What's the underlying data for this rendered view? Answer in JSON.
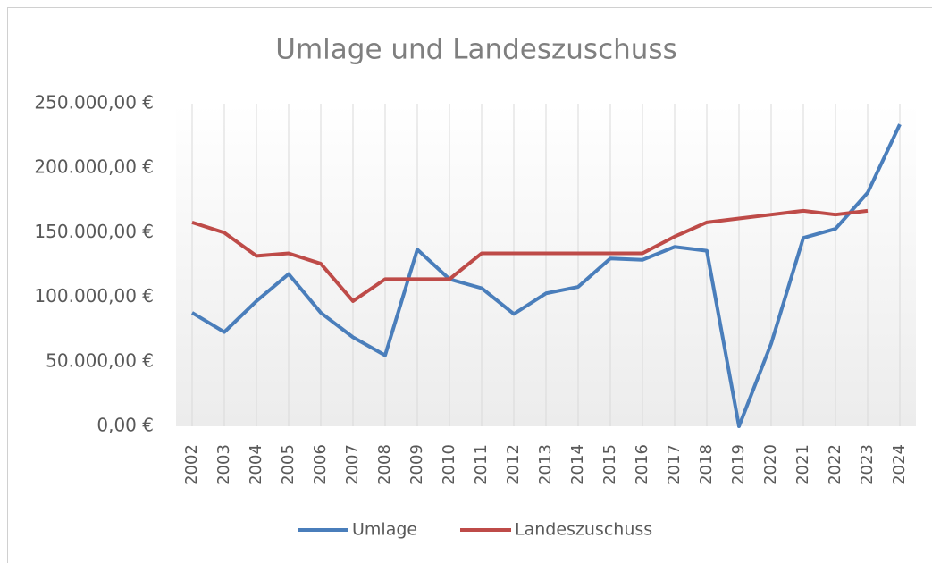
{
  "chart_data": {
    "type": "line",
    "title": "Umlage und Landeszuschuss",
    "categories": [
      "2002",
      "2003",
      "2004",
      "2005",
      "2006",
      "2007",
      "2008",
      "2009",
      "2010",
      "2011",
      "2012",
      "2013",
      "2014",
      "2015",
      "2016",
      "2017",
      "2018",
      "2019",
      "2020",
      "2021",
      "2022",
      "2023",
      "2024"
    ],
    "series": [
      {
        "name": "Umlage",
        "color": "#4a7ebb",
        "values": [
          88000,
          73000,
          97000,
          118000,
          88000,
          69000,
          55000,
          137000,
          114000,
          107000,
          87000,
          103000,
          108000,
          130000,
          129000,
          139000,
          136000,
          0,
          64000,
          146000,
          153000,
          181000,
          234000
        ]
      },
      {
        "name": "Landeszuschuss",
        "color": "#be4b48",
        "values": [
          158000,
          150000,
          132000,
          134000,
          126000,
          97000,
          114000,
          114000,
          114000,
          134000,
          134000,
          134000,
          134000,
          134000,
          134000,
          147000,
          158000,
          161000,
          164000,
          167000,
          164000,
          167000,
          null
        ]
      }
    ],
    "ylim": [
      0,
      250000
    ],
    "yticks": [
      {
        "value": 0,
        "label": "0,00 €"
      },
      {
        "value": 50000,
        "label": "50.000,00 €"
      },
      {
        "value": 100000,
        "label": "100.000,00 €"
      },
      {
        "value": 150000,
        "label": "150.000,00 €"
      },
      {
        "value": 200000,
        "label": "200.000,00 €"
      },
      {
        "value": 250000,
        "label": "250.000,00 €"
      }
    ],
    "legend": "bottom"
  }
}
